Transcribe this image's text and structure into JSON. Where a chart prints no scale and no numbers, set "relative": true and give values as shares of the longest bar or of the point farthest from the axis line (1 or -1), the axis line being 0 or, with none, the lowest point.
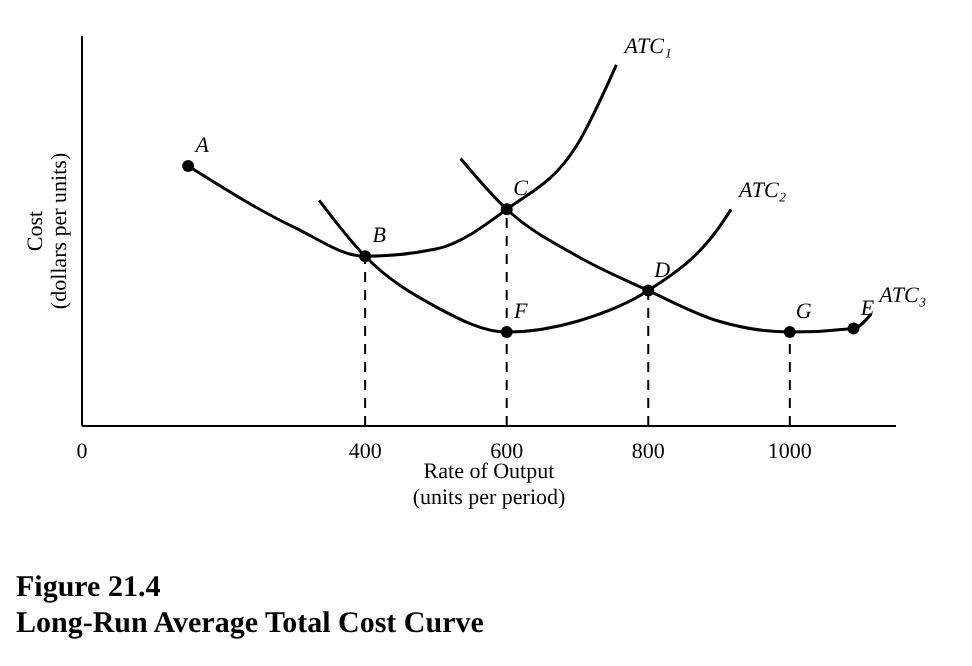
{
  "chart_data": {
    "type": "line",
    "title": "Figure 21.4",
    "subtitle": "Long-Run Average Total Cost Curve",
    "xlabel": "Rate of Output\n(units per period)",
    "ylabel": "Cost\n(dollars per units)",
    "relative": true,
    "xlim": [
      0,
      1150
    ],
    "xticks": [
      0,
      400,
      600,
      800,
      1000
    ],
    "series": [
      {
        "name": "ATC₁",
        "color": "#000000",
        "x": [
          150,
          300,
          400,
          500,
          600,
          700,
          755
        ],
        "values": [
          0.72,
          0.55,
          0.47,
          0.49,
          0.6,
          0.78,
          1.0
        ]
      },
      {
        "name": "ATC₂",
        "color": "#000000",
        "x": [
          335,
          400,
          500,
          600,
          700,
          800,
          900,
          917
        ],
        "values": [
          0.625,
          0.47,
          0.33,
          0.26,
          0.29,
          0.375,
          0.55,
          0.6
        ]
      },
      {
        "name": "ATC₃",
        "color": "#000000",
        "x": [
          535,
          600,
          700,
          800,
          900,
          1000,
          1090,
          1115
        ],
        "values": [
          0.74,
          0.6,
          0.47,
          0.375,
          0.29,
          0.26,
          0.27,
          0.31
        ]
      },
      {
        "color": "#000000",
        "line_style": "dashed",
        "x": [
          400,
          400
        ],
        "values": [
          0,
          0.47
        ]
      },
      {
        "color": "#000000",
        "line_style": "dashed",
        "x": [
          600,
          600
        ],
        "values": [
          0,
          0.6
        ]
      },
      {
        "color": "#000000",
        "line_style": "dashed",
        "x": [
          800,
          800
        ],
        "values": [
          0,
          0.375
        ]
      },
      {
        "color": "#000000",
        "line_style": "dashed",
        "x": [
          1000,
          1000
        ],
        "values": [
          0,
          0.26
        ]
      },
      {
        "type": "scatter",
        "color": "#000000",
        "marker": "circle",
        "x": [
          150,
          400,
          600,
          800,
          600,
          1000,
          1090
        ],
        "values": [
          0.72,
          0.47,
          0.6,
          0.375,
          0.26,
          0.26,
          0.27
        ]
      }
    ],
    "annotations": [
      {
        "text": "A",
        "x": 150,
        "y": 0.72
      },
      {
        "text": "B",
        "x": 400,
        "y": 0.47
      },
      {
        "text": "C",
        "x": 600,
        "y": 0.6
      },
      {
        "text": "D",
        "x": 800,
        "y": 0.375
      },
      {
        "text": "F",
        "x": 600,
        "y": 0.26
      },
      {
        "text": "G",
        "x": 1000,
        "y": 0.26
      },
      {
        "text": "E",
        "x": 1090,
        "y": 0.27
      }
    ]
  }
}
